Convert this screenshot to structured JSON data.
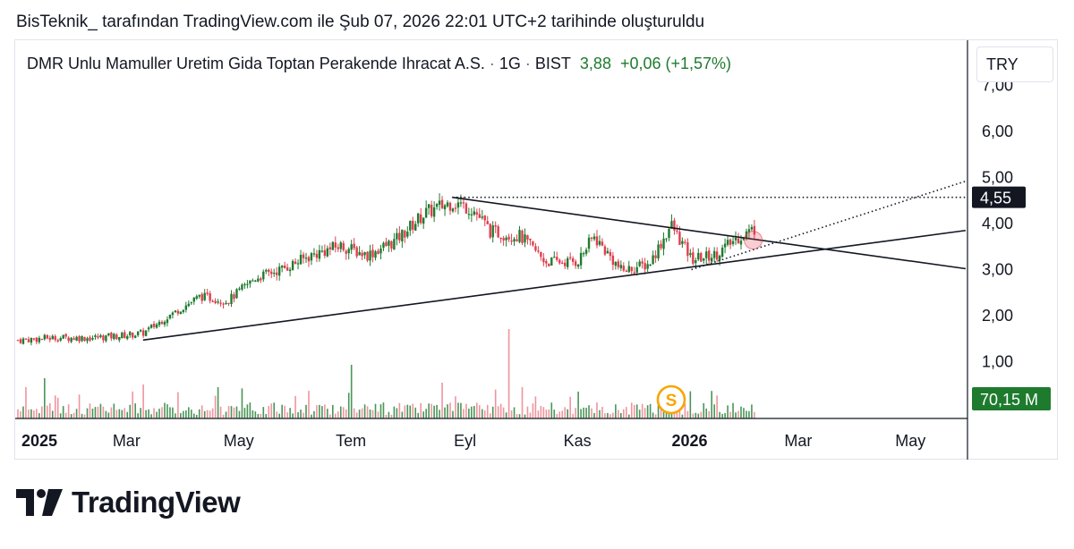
{
  "caption": "BisTeknik_ tarafından TradingView.com ile Şub 07, 2026 22:01 UTC+2 tarihinde oluşturuldu",
  "legend": {
    "symbol_name": "DMR Unlu Mamuller Uretim Gida Toptan Perakende Ihracat A.S.",
    "interval": "1G",
    "exchange": "BIST",
    "separator": "·",
    "last_price": "3,88",
    "change": "+0,06 (+1,57%)"
  },
  "currency": "TRY",
  "logo": {
    "wordmark": "TradingView",
    "icon": "tradingview-logo-icon"
  },
  "colors": {
    "up": "#1e7b2e",
    "down": "#e03e4e",
    "line": "#131722",
    "circle": "#f7a600"
  },
  "chart_data": {
    "type": "candlestick",
    "x_tick_labels": [
      "2025",
      "Mar",
      "May",
      "Tem",
      "Eyl",
      "Kas",
      "2026",
      "Mar",
      "May"
    ],
    "x_tick_bold": [
      "2025",
      "2026"
    ],
    "y_tick_labels": [
      "1,00",
      "2,00",
      "3,00",
      "4,00",
      "5,00",
      "6,00",
      "7,00"
    ],
    "y_range": [
      0,
      7.5
    ],
    "price_label": "4,55",
    "volume_label": "70,15 M",
    "event_marker": "S",
    "trendlines": [
      {
        "name": "rising-support",
        "from": [
          "2025-03-10",
          1.45
        ],
        "to": [
          "2026-05-31",
          3.83
        ]
      },
      {
        "name": "falling-resistance",
        "from": [
          "2025-08-25",
          4.55
        ],
        "to": [
          "2026-05-31",
          3.0
        ]
      }
    ],
    "dotted_lines": [
      {
        "name": "horizontal-resistance",
        "from": [
          "2025-08-25",
          4.55
        ],
        "to": [
          "2026-05-31",
          4.55
        ]
      },
      {
        "name": "projection",
        "from": [
          "2026-01-02",
          2.98
        ],
        "to": [
          "2026-05-31",
          4.9
        ]
      }
    ],
    "close_path": [
      [
        "2025-01-01",
        1.45
      ],
      [
        "2025-01-20",
        1.5
      ],
      [
        "2025-02-10",
        1.5
      ],
      [
        "2025-02-28",
        1.55
      ],
      [
        "2025-03-10",
        1.6
      ],
      [
        "2025-03-25",
        2.0
      ],
      [
        "2025-04-10",
        2.4
      ],
      [
        "2025-04-25",
        2.3
      ],
      [
        "2025-05-10",
        2.8
      ],
      [
        "2025-05-25",
        3.0
      ],
      [
        "2025-06-10",
        3.3
      ],
      [
        "2025-06-25",
        3.5
      ],
      [
        "2025-07-10",
        3.3
      ],
      [
        "2025-07-25",
        3.6
      ],
      [
        "2025-08-10",
        4.2
      ],
      [
        "2025-08-25",
        4.45
      ],
      [
        "2025-09-05",
        4.3
      ],
      [
        "2025-09-15",
        3.8
      ],
      [
        "2025-10-01",
        3.7
      ],
      [
        "2025-10-15",
        3.15
      ],
      [
        "2025-11-01",
        3.15
      ],
      [
        "2025-11-10",
        3.7
      ],
      [
        "2025-11-25",
        2.95
      ],
      [
        "2025-12-10",
        3.1
      ],
      [
        "2025-12-22",
        3.95
      ],
      [
        "2026-01-02",
        3.2
      ],
      [
        "2026-01-15",
        3.3
      ],
      [
        "2026-01-28",
        3.7
      ],
      [
        "2026-02-06",
        3.88
      ]
    ],
    "volume_spikes": [
      [
        "2025-01-15",
        0.45
      ],
      [
        "2025-03-10",
        0.38
      ],
      [
        "2025-04-20",
        0.35
      ],
      [
        "2025-07-01",
        0.6
      ],
      [
        "2025-08-20",
        0.4
      ],
      [
        "2025-09-25",
        1.0
      ],
      [
        "2025-11-01",
        0.3
      ],
      [
        "2025-12-20",
        0.33
      ],
      [
        "2026-02-06",
        0.25
      ]
    ]
  }
}
